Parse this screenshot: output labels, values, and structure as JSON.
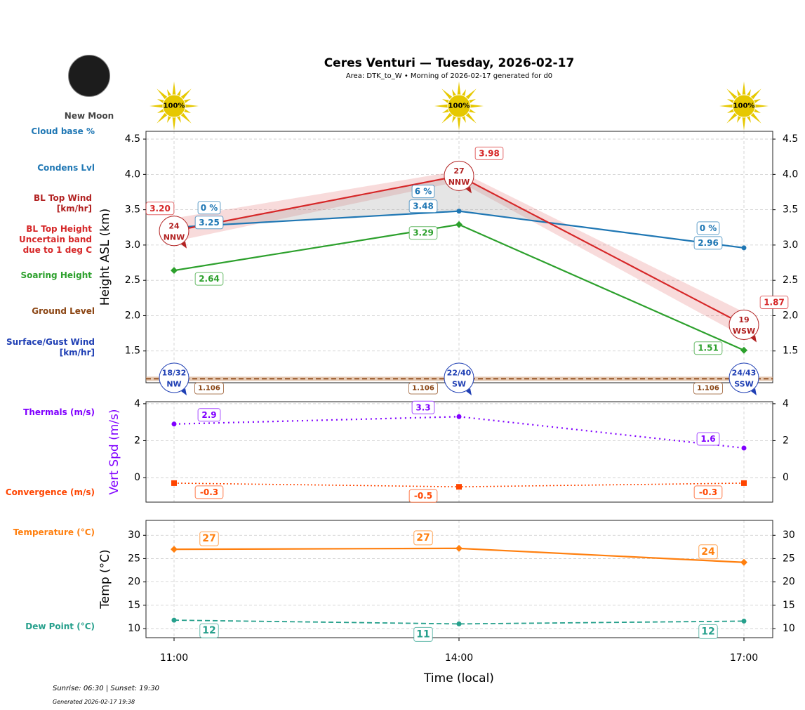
{
  "header": {
    "title": "Ceres Venturi — Tuesday, 2026-02-17",
    "subtitle": "Area: DTK_to_W • Morning of 2026-02-17 generated for d0",
    "moon_phase": "New Moon"
  },
  "side_labels": {
    "cloud_base_pct": "Cloud base %",
    "condens_lvl": "Condens Lvl",
    "bl_top_wind": "BL Top Wind\n[km/hr]",
    "bl_top_height": "BL Top Height\nUncertain band\ndue to 1 deg C",
    "soaring_height": "Soaring Height",
    "ground_level": "Ground Level",
    "surface_wind": "Surface/Gust Wind\n[km/hr]",
    "thermals": "Thermals (m/s)",
    "convergence": "Convergence (m/s)",
    "temperature": "Temperature (°C)",
    "dew_point": "Dew Point (°C)"
  },
  "footer": {
    "sun": "Sunrise: 06:30 | Sunset: 19:30",
    "generated": "Generated 2026-02-17 19:38"
  },
  "colors": {
    "bl_top": "#d62728",
    "condens": "#1f77b4",
    "soaring": "#2ca02c",
    "ground": "#8b4513",
    "surface_wind": "#1f3fb4",
    "thermals": "#8000ff",
    "convergence": "#ff4500",
    "temperature": "#ff7f0e",
    "dew_point": "#26a08c",
    "sun": "#e6c800"
  },
  "chart_data": [
    {
      "type": "line",
      "xlabel": "",
      "ylabel": "Height ASL (km)",
      "x": [
        "11:00",
        "14:00",
        "17:00"
      ],
      "ylim": [
        1.05,
        4.61
      ],
      "yticks": [
        "1.5",
        "2.0",
        "2.5",
        "3.0",
        "3.5",
        "4.0",
        "4.5"
      ],
      "grid": true,
      "sunshine_pct": [
        "100%",
        "100%",
        "100%"
      ],
      "series": {
        "bl_top": {
          "values": [
            3.2,
            3.98,
            1.87
          ],
          "labels": [
            "3.20",
            "3.98",
            "1.87"
          ],
          "band_lower": [
            3.05,
            3.9,
            1.7
          ],
          "band_upper": [
            3.38,
            4.05,
            2.05
          ]
        },
        "condens": {
          "values": [
            3.25,
            3.48,
            2.96
          ],
          "labels": [
            "3.25",
            "3.48",
            "2.96"
          ]
        },
        "cloud_base_pct": [
          "0 %",
          "6 %",
          "0 %"
        ],
        "soaring": {
          "values": [
            2.64,
            3.29,
            1.51
          ],
          "labels": [
            "2.64",
            "3.29",
            "1.51"
          ]
        },
        "ground": {
          "values": [
            1.106,
            1.106,
            1.106
          ],
          "labels": [
            "1.106",
            "1.106",
            "1.106"
          ]
        },
        "bl_wind": [
          {
            "speed": "24",
            "dir": "NNW"
          },
          {
            "speed": "27",
            "dir": "NNW"
          },
          {
            "speed": "19",
            "dir": "WSW"
          }
        ],
        "surface_wind": [
          {
            "speed": "18/32",
            "dir": "NW"
          },
          {
            "speed": "22/40",
            "dir": "SW"
          },
          {
            "speed": "24/43",
            "dir": "SSW"
          }
        ]
      }
    },
    {
      "type": "line",
      "ylabel": "Vert Spd (m/s)",
      "x": [
        "11:00",
        "14:00",
        "17:00"
      ],
      "ylim": [
        -1.33,
        4.11
      ],
      "yticks": [
        "0",
        "2",
        "4"
      ],
      "grid": true,
      "series": {
        "thermals": {
          "values": [
            2.9,
            3.3,
            1.6
          ],
          "labels": [
            "2.9",
            "3.3",
            "1.6"
          ]
        },
        "convergence": {
          "values": [
            -0.3,
            -0.5,
            -0.3
          ],
          "labels": [
            "-0.3",
            "-0.5",
            "-0.3"
          ]
        }
      }
    },
    {
      "type": "line",
      "xlabel": "Time (local)",
      "ylabel": "Temp (°C)",
      "x": [
        "11:00",
        "14:00",
        "17:00"
      ],
      "ylim": [
        8.05,
        33.2
      ],
      "yticks": [
        "10",
        "15",
        "20",
        "25",
        "30"
      ],
      "grid": true,
      "series": {
        "temperature": {
          "values": [
            27.0,
            27.2,
            24.2
          ],
          "labels": [
            "27",
            "27",
            "24"
          ]
        },
        "dew_point": {
          "values": [
            11.8,
            11.0,
            11.6
          ],
          "labels": [
            "12",
            "11",
            "12"
          ]
        }
      }
    }
  ]
}
